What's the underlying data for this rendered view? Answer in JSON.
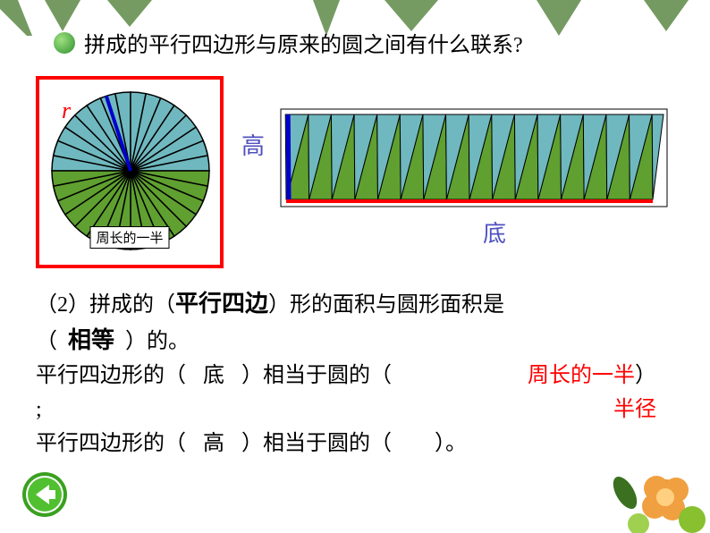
{
  "question": "拼成的平行四边形与原来的圆之间有什么联系?",
  "circle": {
    "r_label": "r",
    "caption": "周长的一半",
    "top_color": "#6fb8bf",
    "bottom_color": "#5fa030",
    "stroke": "#000000",
    "radius_line_color": "#0000cc"
  },
  "parallelogram": {
    "height_label": "高",
    "base_label": "底",
    "top_tri_color": "#6fb8bf",
    "bottom_tri_color": "#5fa030",
    "base_line_color": "#ff0000",
    "height_line_color": "#0000cc"
  },
  "text": {
    "line1_a": "（2）拼成的（",
    "line1_fill": "平行四边",
    "line1_b": "）形的面积与圆形面积是",
    "line2_a": "（",
    "line2_fill": "相等",
    "line2_b": "）的。",
    "line3_a": "平行四边形的（",
    "line3_fill1": "底",
    "line3_b": "）相当于圆的（",
    "line3_fill2": "周长的一半",
    "line3_c": "）",
    "line3_semi": ";",
    "line4_a": "平行四边形的（",
    "line4_fill1": "高",
    "line4_b": "）相当于圆的（",
    "line4_fill2": "半径",
    "line4_c": "）。"
  },
  "colors": {
    "red": "#ff0000",
    "purple": "#5050c0",
    "leaf_green": "#4a8030",
    "flower_orange": "#f08030"
  }
}
